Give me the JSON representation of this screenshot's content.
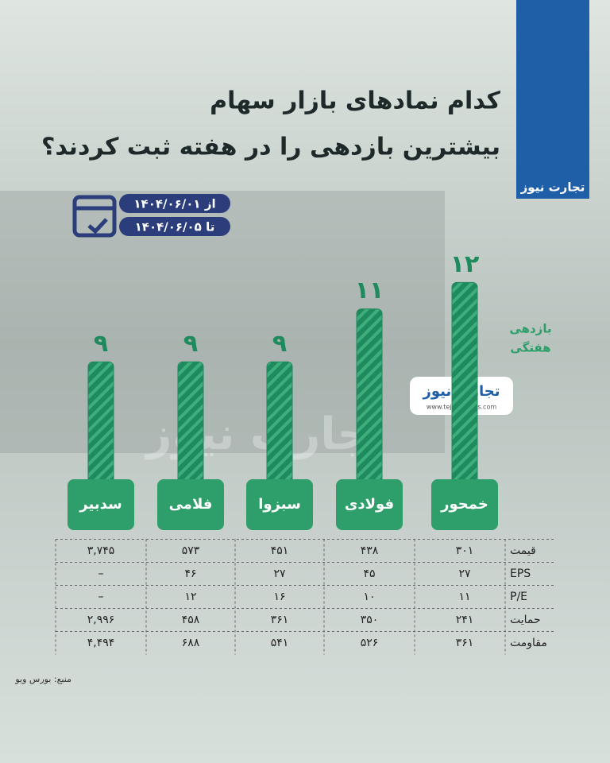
{
  "brand": "تجارت نیوز",
  "website": "www.tejaratnews.com",
  "date_from": "از ۱۴۰۴/۰۶/۰۱",
  "date_to": "تا ۱۴۰۴/۰۶/۰۵",
  "source": "منبع: بورس ویو",
  "chart_data": {
    "type": "bar",
    "title": [
      "کدام نمادهای بازار سهام",
      "بیشترین بازدهی را در هفته ثبت کردند؟"
    ],
    "y_label": [
      "بازدهی",
      "هفتگی"
    ],
    "categories": [
      "خمحور",
      "فولادی",
      "سبزوا",
      "فلامی",
      "سدبیر"
    ],
    "values": [
      12,
      11,
      9,
      9,
      9
    ],
    "value_labels": [
      "۱۲",
      "۱۱",
      "۹",
      "۹",
      "۹"
    ],
    "color": "#1f8a5e"
  },
  "table": {
    "rows": [
      {
        "label": "قیمت",
        "cells": [
          "۳۰۱",
          "۴۳۸",
          "۴۵۱",
          "۵۷۳",
          "۳,۷۴۵"
        ]
      },
      {
        "label": "EPS",
        "cells": [
          "۲۷",
          "۴۵",
          "۲۷",
          "۴۶",
          "–"
        ]
      },
      {
        "label": "P/E",
        "cells": [
          "۱۱",
          "۱۰",
          "۱۶",
          "۱۲",
          "–"
        ]
      },
      {
        "label": "حمایت",
        "cells": [
          "۲۴۱",
          "۳۵۰",
          "۳۶۱",
          "۴۵۸",
          "۲,۹۹۶"
        ]
      },
      {
        "label": "مقاومت",
        "cells": [
          "۳۶۱",
          "۵۲۶",
          "۵۴۱",
          "۶۸۸",
          "۴,۴۹۴"
        ]
      }
    ]
  }
}
